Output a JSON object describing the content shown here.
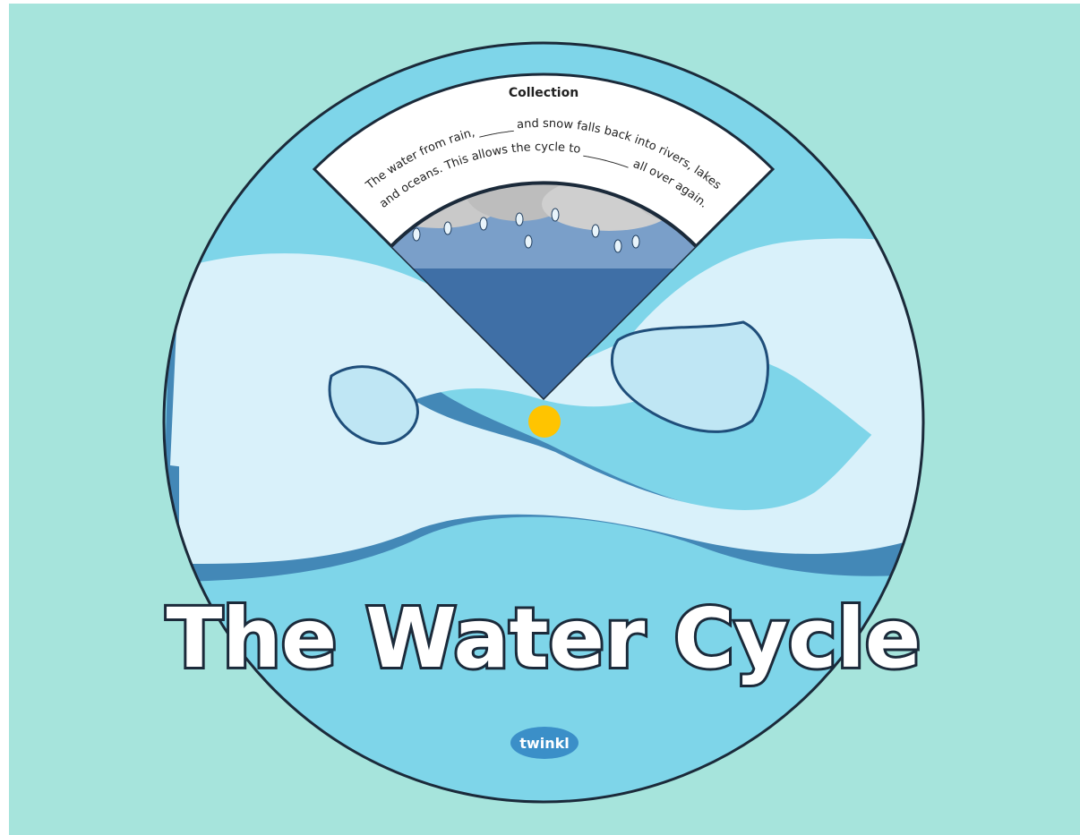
{
  "card": {
    "section_title": "Collection",
    "line_1": "The water from rain, ______ and snow falls back into rivers, lakes",
    "line_2": "and oceans. This allows the cycle to ________ all over again.",
    "title": "The Water Cycle",
    "brand": "twinkl"
  }
}
